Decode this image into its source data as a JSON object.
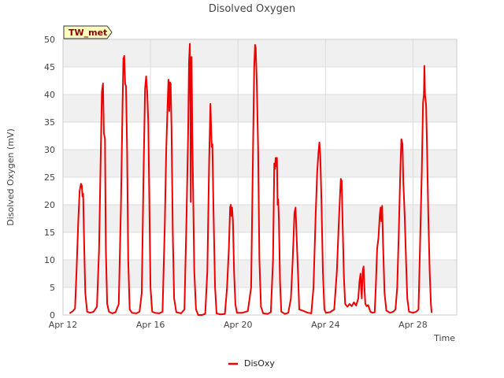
{
  "chart_data": {
    "type": "line",
    "title": "Disolved Oxygen",
    "xlabel": "Time",
    "ylabel": "Disolved Oxygen (mV)",
    "site_tag": "TW_met",
    "ylim": [
      0,
      50
    ],
    "xlim": [
      0,
      18
    ],
    "yticks": [
      0,
      5,
      10,
      15,
      20,
      25,
      30,
      35,
      40,
      45,
      50
    ],
    "xticks": [
      {
        "day": 0,
        "label": "Apr 12"
      },
      {
        "day": 4,
        "label": "Apr 16"
      },
      {
        "day": 8,
        "label": "Apr 20"
      },
      {
        "day": 12,
        "label": "Apr 24"
      },
      {
        "day": 16,
        "label": "Apr 28"
      }
    ],
    "band_color": "#f0f0f0",
    "series": [
      {
        "name": "DisOxy",
        "color": "#ee0000",
        "points": [
          [
            0.3,
            0.3
          ],
          [
            0.45,
            0.7
          ],
          [
            0.55,
            1.2
          ],
          [
            0.62,
            8
          ],
          [
            0.7,
            17
          ],
          [
            0.76,
            22.5
          ],
          [
            0.82,
            23.8
          ],
          [
            0.86,
            23.5
          ],
          [
            0.89,
            21.5
          ],
          [
            0.92,
            22
          ],
          [
            0.96,
            14
          ],
          [
            1.02,
            4
          ],
          [
            1.1,
            0.6
          ],
          [
            1.25,
            0.4
          ],
          [
            1.4,
            0.6
          ],
          [
            1.55,
            1.5
          ],
          [
            1.65,
            12
          ],
          [
            1.72,
            28
          ],
          [
            1.78,
            40.5
          ],
          [
            1.83,
            42
          ],
          [
            1.87,
            33
          ],
          [
            1.92,
            32
          ],
          [
            1.96,
            12
          ],
          [
            2.02,
            2
          ],
          [
            2.1,
            0.6
          ],
          [
            2.25,
            0.3
          ],
          [
            2.4,
            0.5
          ],
          [
            2.55,
            2
          ],
          [
            2.65,
            20
          ],
          [
            2.72,
            38
          ],
          [
            2.76,
            46.5
          ],
          [
            2.8,
            47
          ],
          [
            2.84,
            42
          ],
          [
            2.88,
            41.5
          ],
          [
            2.93,
            30
          ],
          [
            2.98,
            10
          ],
          [
            3.05,
            1
          ],
          [
            3.15,
            0.4
          ],
          [
            3.35,
            0.3
          ],
          [
            3.5,
            0.6
          ],
          [
            3.6,
            4
          ],
          [
            3.68,
            25
          ],
          [
            3.75,
            41
          ],
          [
            3.8,
            43.3
          ],
          [
            3.85,
            40.5
          ],
          [
            3.9,
            35
          ],
          [
            3.95,
            20
          ],
          [
            4.0,
            5
          ],
          [
            4.08,
            0.6
          ],
          [
            4.2,
            0.4
          ],
          [
            4.4,
            0.3
          ],
          [
            4.55,
            0.6
          ],
          [
            4.65,
            16
          ],
          [
            4.72,
            30
          ],
          [
            4.78,
            38
          ],
          [
            4.82,
            42.7
          ],
          [
            4.86,
            37
          ],
          [
            4.89,
            42.2
          ],
          [
            4.92,
            42
          ],
          [
            4.96,
            34
          ],
          [
            5.02,
            15
          ],
          [
            5.08,
            3
          ],
          [
            5.18,
            0.5
          ],
          [
            5.4,
            0.3
          ],
          [
            5.55,
            1
          ],
          [
            5.65,
            18
          ],
          [
            5.72,
            33
          ],
          [
            5.76,
            46
          ],
          [
            5.8,
            49.2
          ],
          [
            5.82,
            38
          ],
          [
            5.84,
            20.5
          ],
          [
            5.86,
            46
          ],
          [
            5.88,
            46.8
          ],
          [
            5.91,
            33
          ],
          [
            5.95,
            22
          ],
          [
            6.0,
            8
          ],
          [
            6.08,
            1
          ],
          [
            6.18,
            0
          ],
          [
            6.35,
            0
          ],
          [
            6.5,
            0.2
          ],
          [
            6.6,
            8
          ],
          [
            6.68,
            28
          ],
          [
            6.74,
            38.3
          ],
          [
            6.78,
            33
          ],
          [
            6.8,
            30.5
          ],
          [
            6.83,
            31
          ],
          [
            6.88,
            19
          ],
          [
            6.95,
            5
          ],
          [
            7.02,
            0.3
          ],
          [
            7.2,
            0.1
          ],
          [
            7.4,
            0.2
          ],
          [
            7.5,
            5
          ],
          [
            7.58,
            12
          ],
          [
            7.64,
            19.5
          ],
          [
            7.67,
            20
          ],
          [
            7.7,
            18
          ],
          [
            7.73,
            19.5
          ],
          [
            7.77,
            17
          ],
          [
            7.82,
            8
          ],
          [
            7.88,
            2
          ],
          [
            7.95,
            0.4
          ],
          [
            8.2,
            0.4
          ],
          [
            8.45,
            0.7
          ],
          [
            8.6,
            5
          ],
          [
            8.68,
            28
          ],
          [
            8.74,
            45
          ],
          [
            8.78,
            49
          ],
          [
            8.81,
            48.5
          ],
          [
            8.86,
            42
          ],
          [
            8.92,
            30
          ],
          [
            8.98,
            10
          ],
          [
            9.05,
            1.5
          ],
          [
            9.15,
            0.3
          ],
          [
            9.35,
            0.2
          ],
          [
            9.5,
            0.5
          ],
          [
            9.6,
            10
          ],
          [
            9.66,
            27.5
          ],
          [
            9.69,
            26.5
          ],
          [
            9.72,
            28.5
          ],
          [
            9.75,
            27
          ],
          [
            9.78,
            28.5
          ],
          [
            9.81,
            20
          ],
          [
            9.84,
            21
          ],
          [
            9.87,
            17
          ],
          [
            9.92,
            6
          ],
          [
            9.98,
            0.6
          ],
          [
            10.15,
            0.2
          ],
          [
            10.3,
            0.4
          ],
          [
            10.42,
            3
          ],
          [
            10.5,
            10
          ],
          [
            10.58,
            18.5
          ],
          [
            10.63,
            19.5
          ],
          [
            10.68,
            14
          ],
          [
            10.75,
            7
          ],
          [
            10.8,
            1
          ],
          [
            10.95,
            0.8
          ],
          [
            11.2,
            0.4
          ],
          [
            11.35,
            0.3
          ],
          [
            11.45,
            5
          ],
          [
            11.55,
            18
          ],
          [
            11.62,
            26
          ],
          [
            11.68,
            29.5
          ],
          [
            11.72,
            31.3
          ],
          [
            11.76,
            29
          ],
          [
            11.82,
            20
          ],
          [
            11.88,
            8
          ],
          [
            11.95,
            1
          ],
          [
            12.02,
            0.4
          ],
          [
            12.2,
            0.5
          ],
          [
            12.4,
            1
          ],
          [
            12.52,
            8
          ],
          [
            12.6,
            16
          ],
          [
            12.66,
            21.5
          ],
          [
            12.7,
            24.7
          ],
          [
            12.74,
            24.3
          ],
          [
            12.78,
            17
          ],
          [
            12.84,
            7
          ],
          [
            12.9,
            2
          ],
          [
            13.0,
            1.5
          ],
          [
            13.1,
            2
          ],
          [
            13.2,
            1.6
          ],
          [
            13.3,
            2.3
          ],
          [
            13.4,
            1.7
          ],
          [
            13.5,
            3
          ],
          [
            13.55,
            6
          ],
          [
            13.6,
            7.5
          ],
          [
            13.63,
            5
          ],
          [
            13.66,
            3
          ],
          [
            13.7,
            8
          ],
          [
            13.74,
            8.8
          ],
          [
            13.78,
            5
          ],
          [
            13.82,
            2
          ],
          [
            13.88,
            1.6
          ],
          [
            13.95,
            1.8
          ],
          [
            14.05,
            0.6
          ],
          [
            14.15,
            0.4
          ],
          [
            14.25,
            0.5
          ],
          [
            14.3,
            5
          ],
          [
            14.36,
            12
          ],
          [
            14.42,
            14
          ],
          [
            14.48,
            18
          ],
          [
            14.52,
            19.5
          ],
          [
            14.55,
            17
          ],
          [
            14.59,
            19.8
          ],
          [
            14.63,
            13
          ],
          [
            14.7,
            4
          ],
          [
            14.78,
            0.8
          ],
          [
            14.95,
            0.4
          ],
          [
            15.1,
            0.6
          ],
          [
            15.2,
            1
          ],
          [
            15.28,
            5
          ],
          [
            15.35,
            15
          ],
          [
            15.42,
            26
          ],
          [
            15.47,
            31.9
          ],
          [
            15.52,
            31
          ],
          [
            15.56,
            24
          ],
          [
            15.62,
            18
          ],
          [
            15.68,
            10
          ],
          [
            15.74,
            3
          ],
          [
            15.82,
            0.6
          ],
          [
            16.0,
            0.4
          ],
          [
            16.15,
            0.6
          ],
          [
            16.25,
            1
          ],
          [
            16.32,
            12
          ],
          [
            16.4,
            26
          ],
          [
            16.46,
            38.5
          ],
          [
            16.5,
            40
          ],
          [
            16.52,
            45.2
          ],
          [
            16.55,
            40
          ],
          [
            16.6,
            38
          ],
          [
            16.64,
            31
          ],
          [
            16.7,
            18
          ],
          [
            16.76,
            8
          ],
          [
            16.82,
            2
          ],
          [
            16.85,
            0.4
          ]
        ]
      }
    ]
  }
}
